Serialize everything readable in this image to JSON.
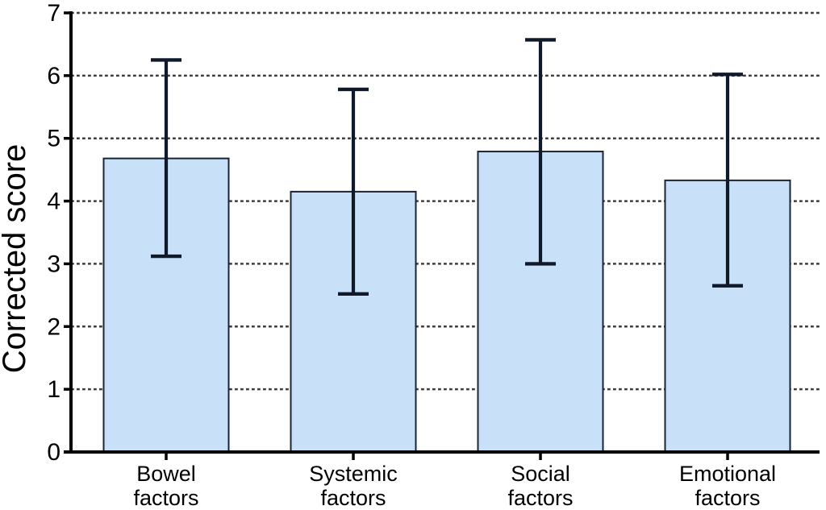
{
  "chart_data": {
    "type": "bar",
    "title": "",
    "xlabel": "",
    "ylabel": "Corrected score",
    "ylim": [
      0,
      7
    ],
    "yticks": [
      "0",
      "1",
      "2",
      "3",
      "4",
      "5",
      "6",
      "7"
    ],
    "grid": "horizontal dotted lines at integer values 1-7",
    "legend_position": "none",
    "categories": [
      "Bowel factors",
      "Systemic factors",
      "Social factors",
      "Emotional factors"
    ],
    "category_lines": [
      [
        "Bowel",
        "factors"
      ],
      [
        "Systemic",
        "factors"
      ],
      [
        "Social",
        "factors"
      ],
      [
        "Emotional",
        "factors"
      ]
    ],
    "series": [
      {
        "name": "Corrected score",
        "values": [
          4.68,
          4.15,
          4.79,
          4.33
        ],
        "error_high": [
          6.25,
          5.78,
          6.57,
          6.02
        ],
        "error_low": [
          3.12,
          2.52,
          3.0,
          2.65
        ]
      }
    ],
    "colors": {
      "background": "#ffffff",
      "bar_fill": "#c9e1f8",
      "bar_stroke": "#1a2433",
      "error_bar": "#10192a",
      "axis": "#000000",
      "gridline": "#3d3d3d",
      "text": "#000000"
    }
  }
}
